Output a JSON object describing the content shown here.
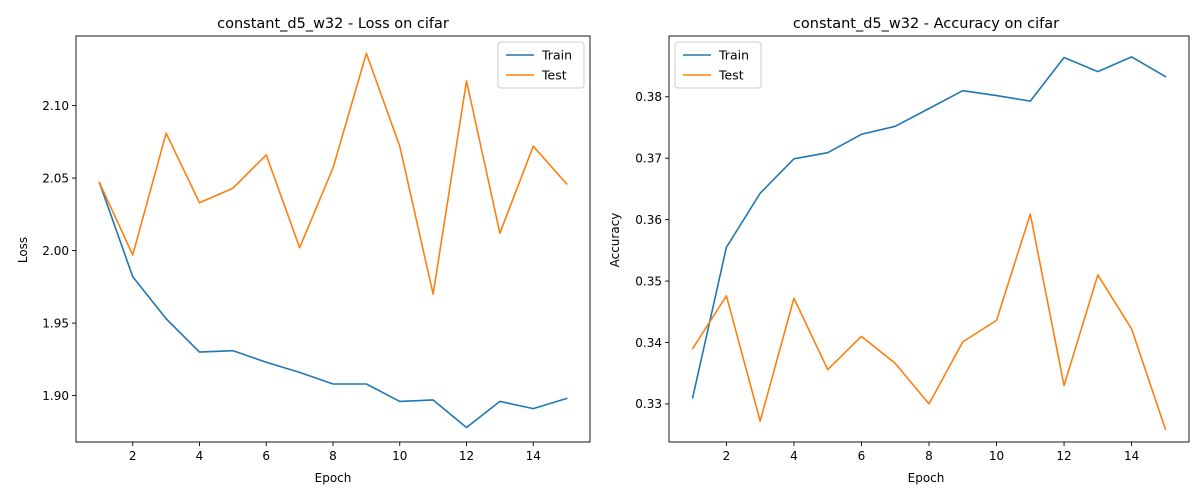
{
  "chart_data": [
    {
      "type": "line",
      "title": "constant_d5_w32 - Loss on cifar",
      "xlabel": "Epoch",
      "ylabel": "Loss",
      "xlim": [
        0.3,
        15.7
      ],
      "ylim": [
        1.868,
        2.148
      ],
      "xticks": [
        2,
        4,
        6,
        8,
        10,
        12,
        14
      ],
      "yticks": [
        1.9,
        1.95,
        2.0,
        2.05,
        2.1
      ],
      "ytick_labels": [
        "1.90",
        "1.95",
        "2.00",
        "2.05",
        "2.10"
      ],
      "legend_position": "top-right",
      "grid": false,
      "x": [
        1,
        2,
        3,
        4,
        5,
        6,
        7,
        8,
        9,
        10,
        11,
        12,
        13,
        14,
        15
      ],
      "series": [
        {
          "name": "Train",
          "color": "#1f77b4",
          "values": [
            2.047,
            1.982,
            1.953,
            1.93,
            1.931,
            1.923,
            1.916,
            1.908,
            1.908,
            1.896,
            1.897,
            1.878,
            1.896,
            1.891,
            1.898
          ]
        },
        {
          "name": "Test",
          "color": "#ff7f0e",
          "values": [
            2.047,
            1.997,
            2.081,
            2.033,
            2.043,
            2.066,
            2.002,
            2.057,
            2.136,
            2.072,
            1.97,
            2.117,
            2.012,
            2.072,
            2.046
          ]
        }
      ]
    },
    {
      "type": "line",
      "title": "constant_d5_w32 - Accuracy on cifar",
      "xlabel": "Epoch",
      "ylabel": "Accuracy",
      "xlim": [
        0.3,
        15.7
      ],
      "ylim": [
        0.3238,
        0.3899
      ],
      "xticks": [
        2,
        4,
        6,
        8,
        10,
        12,
        14
      ],
      "yticks": [
        0.33,
        0.34,
        0.35,
        0.36,
        0.37,
        0.38
      ],
      "ytick_labels": [
        "0.33",
        "0.34",
        "0.35",
        "0.36",
        "0.37",
        "0.38"
      ],
      "legend_position": "top-left",
      "grid": false,
      "x": [
        1,
        2,
        3,
        4,
        5,
        6,
        7,
        8,
        9,
        10,
        11,
        12,
        13,
        14,
        15
      ],
      "series": [
        {
          "name": "Train",
          "color": "#1f77b4",
          "values": [
            0.331,
            0.3555,
            0.3643,
            0.3699,
            0.3709,
            0.3739,
            0.3752,
            0.3781,
            0.381,
            0.3802,
            0.3793,
            0.3864,
            0.3841,
            0.3865,
            0.3833
          ]
        },
        {
          "name": "Test",
          "color": "#ff7f0e",
          "values": [
            0.339,
            0.3476,
            0.3272,
            0.3472,
            0.3356,
            0.341,
            0.3366,
            0.33,
            0.3401,
            0.3436,
            0.3609,
            0.333,
            0.351,
            0.3422,
            0.3259
          ]
        }
      ]
    }
  ]
}
